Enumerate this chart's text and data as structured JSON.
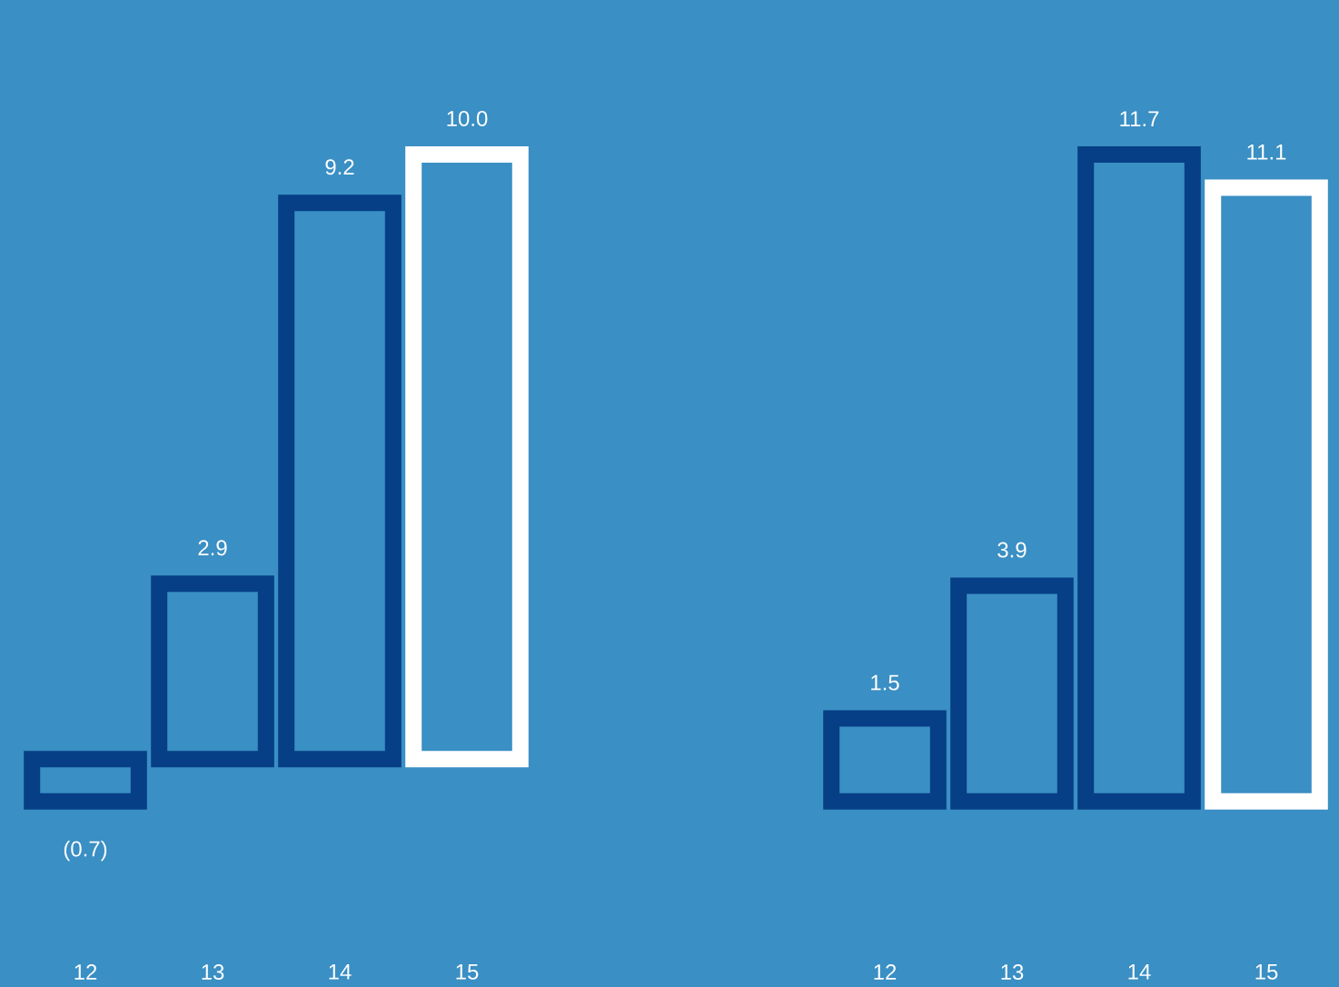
{
  "chart_data": [
    {
      "type": "bar",
      "categories": [
        "12",
        "13",
        "14",
        "15"
      ],
      "values": [
        -0.7,
        2.9,
        9.2,
        10.0
      ],
      "colors": [
        "#063f85",
        "#063f85",
        "#063f85",
        "#ffffff"
      ],
      "value_labels": [
        "(0.7)",
        "2.9",
        "9.2",
        "10.0"
      ],
      "tick_labels": "x"
    },
    {
      "type": "bar",
      "categories": [
        "12",
        "13",
        "14",
        "15"
      ],
      "values": [
        1.5,
        3.9,
        11.7,
        11.1
      ],
      "colors": [
        "#063f85",
        "#063f85",
        "#063f85",
        "#ffffff"
      ],
      "value_labels": [
        "1.5",
        "3.9",
        "11.7",
        "11.1"
      ],
      "tick_labels": "x"
    }
  ]
}
